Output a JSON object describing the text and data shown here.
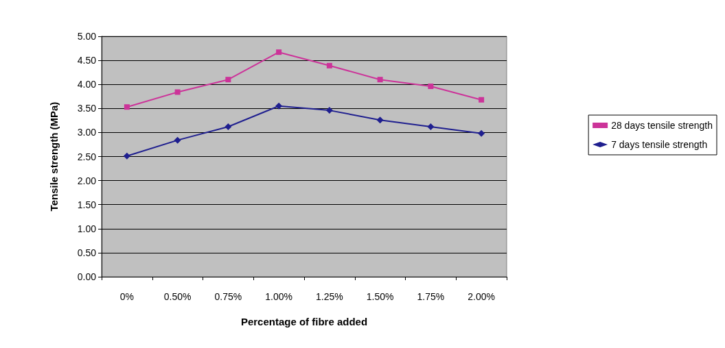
{
  "chart_data": {
    "type": "line",
    "xlabel": "Percentage of fibre added",
    "ylabel": "Tensile strength (MPa)",
    "categories": [
      "0%",
      "0.50%",
      "0.75%",
      "1.00%",
      "1.25%",
      "1.50%",
      "1.75%",
      "2.00%"
    ],
    "series": [
      {
        "name": "28 days tensile strength",
        "color": "#cc3399",
        "marker": "square",
        "values": [
          3.53,
          3.84,
          4.1,
          4.67,
          4.39,
          4.1,
          3.96,
          3.68
        ]
      },
      {
        "name": "7 days tensile strength",
        "color": "#1f1f8f",
        "marker": "diamond",
        "values": [
          2.51,
          2.84,
          3.12,
          3.55,
          3.46,
          3.26,
          3.12,
          2.98
        ]
      }
    ],
    "ylim": [
      0,
      5
    ],
    "yticks": [
      {
        "value": 0,
        "label": "0.00"
      },
      {
        "value": 0.5,
        "label": "0.50"
      },
      {
        "value": 1,
        "label": "1.00"
      },
      {
        "value": 1.5,
        "label": "1.50"
      },
      {
        "value": 2,
        "label": "2.00"
      },
      {
        "value": 2.5,
        "label": "2.50"
      },
      {
        "value": 3,
        "label": "3.00"
      },
      {
        "value": 3.5,
        "label": "3.50"
      },
      {
        "value": 4,
        "label": "4.00"
      },
      {
        "value": 4.5,
        "label": "4.50"
      },
      {
        "value": 5,
        "label": "5.00"
      }
    ],
    "grid": "y",
    "legend": "right",
    "line_style": "solid"
  }
}
